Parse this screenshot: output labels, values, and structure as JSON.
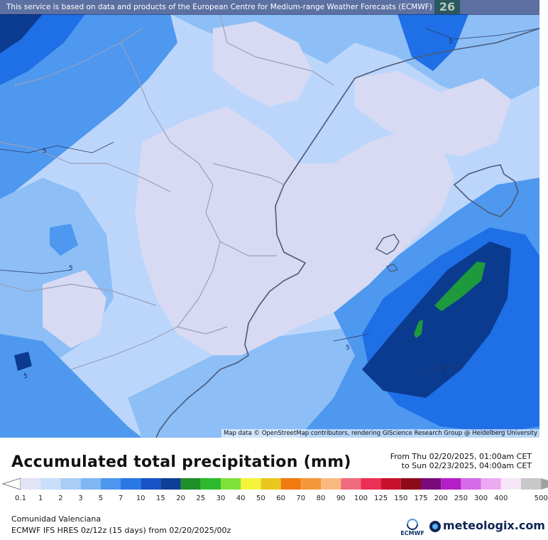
{
  "banner": {
    "text": "This service is based on data and products of the European Centre for Medium-range Weather Forecasts (ECMWF)",
    "badge": "26"
  },
  "map": {
    "attribution": "Map data © OpenStreetMap contributors, rendering GIScience Research Group @ Heidelberg University",
    "contour_labels": [
      "5",
      "5",
      "5",
      "5",
      "5",
      "5",
      "5"
    ],
    "colors": {
      "lightest": "#d7daf2",
      "light": "#bcd6fb",
      "mid_light": "#8dbef6",
      "mid": "#4e98ef",
      "mid_dark": "#1f6fe6",
      "dark": "#104fc4",
      "darkest": "#0b3b8f",
      "green": "#1e9a3c",
      "coast": "#4a5a78",
      "border": "#9aa0b8"
    }
  },
  "legend": {
    "title": "Accumulated total precipitation (mm)",
    "range_from": "From Thu 02/20/2025, 01:00am CET",
    "range_to": "to Sun 02/23/2025, 04:00am CET",
    "scale": [
      {
        "label": "0.1",
        "color": "#e3e3f6"
      },
      {
        "label": "1",
        "color": "#c9def8"
      },
      {
        "label": "2",
        "color": "#a9cdf7"
      },
      {
        "label": "3",
        "color": "#7fb6f4"
      },
      {
        "label": "5",
        "color": "#4d97ee"
      },
      {
        "label": "7",
        "color": "#2a78e4"
      },
      {
        "label": "10",
        "color": "#1654c8"
      },
      {
        "label": "15",
        "color": "#0d3f96"
      },
      {
        "label": "20",
        "color": "#1f8f2a"
      },
      {
        "label": "25",
        "color": "#2dbb2d"
      },
      {
        "label": "30",
        "color": "#7ee23a"
      },
      {
        "label": "40",
        "color": "#f4f43a"
      },
      {
        "label": "50",
        "color": "#e8c81e"
      },
      {
        "label": "60",
        "color": "#f07a10"
      },
      {
        "label": "70",
        "color": "#f5983c"
      },
      {
        "label": "80",
        "color": "#f8ba7e"
      },
      {
        "label": "90",
        "color": "#f26a7e"
      },
      {
        "label": "100",
        "color": "#ec2f55"
      },
      {
        "label": "125",
        "color": "#c8102c"
      },
      {
        "label": "150",
        "color": "#8e0a18"
      },
      {
        "label": "175",
        "color": "#7a0a7a"
      },
      {
        "label": "200",
        "color": "#b41ec8"
      },
      {
        "label": "250",
        "color": "#d46ae6"
      },
      {
        "label": "300",
        "color": "#ebaaf2"
      },
      {
        "label": "400",
        "color": "#f6e6f8"
      },
      {
        "label": "500",
        "color": "#c8c8c8"
      }
    ],
    "region": "Comunidad Valenciana",
    "model": "ECMWF IFS HRES 0z/12z (15 days)  from  02/20/2025/00z",
    "ecmwf_label": "ECMWF",
    "brand": "meteologix.com"
  }
}
